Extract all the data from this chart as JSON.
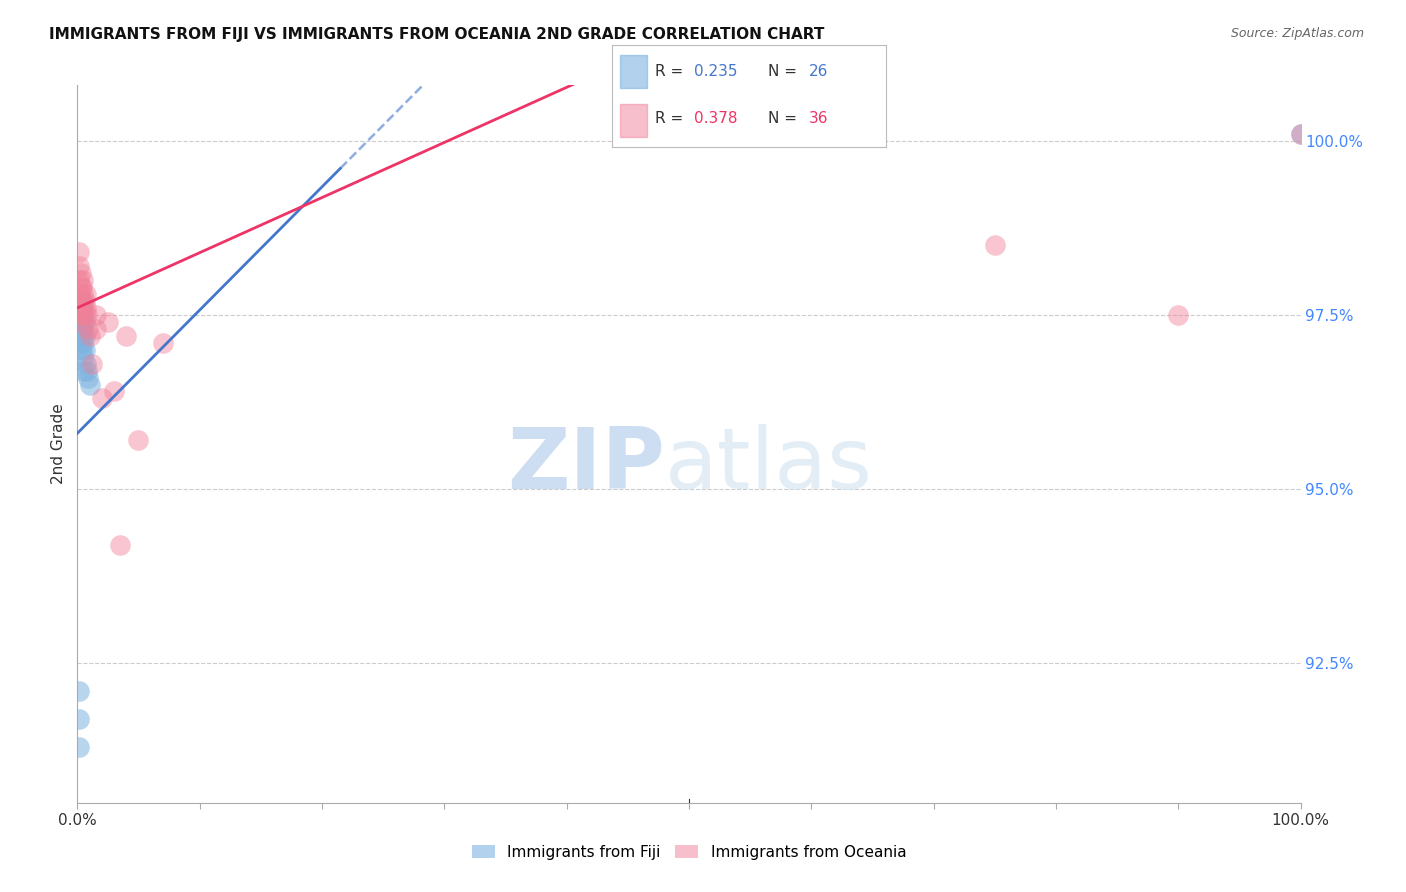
{
  "title": "IMMIGRANTS FROM FIJI VS IMMIGRANTS FROM OCEANIA 2ND GRADE CORRELATION CHART",
  "source": "Source: ZipAtlas.com",
  "ylabel": "2nd Grade",
  "ytick_labels": [
    "100.0%",
    "97.5%",
    "95.0%",
    "92.5%"
  ],
  "ytick_values": [
    1.0,
    0.975,
    0.95,
    0.925
  ],
  "xlim": [
    0.0,
    1.0
  ],
  "ylim": [
    0.905,
    1.008
  ],
  "legend1_r": "0.235",
  "legend1_n": "26",
  "legend2_r": "0.378",
  "legend2_n": "36",
  "color_fiji": "#7EB3E0",
  "color_oceania": "#F08098",
  "color_fiji_line": "#4477CC",
  "color_oceania_line": "#EE3366",
  "fiji_points_x": [
    0.001,
    0.001,
    0.001,
    0.002,
    0.002,
    0.003,
    0.003,
    0.003,
    0.004,
    0.004,
    0.004,
    0.004,
    0.005,
    0.005,
    0.005,
    0.005,
    0.005,
    0.005,
    0.006,
    0.006,
    0.006,
    0.007,
    0.008,
    0.009,
    0.01,
    1.0
  ],
  "fiji_points_y": [
    0.921,
    0.917,
    0.913,
    0.973,
    0.971,
    0.977,
    0.975,
    0.973,
    0.976,
    0.974,
    0.972,
    0.97,
    0.977,
    0.975,
    0.973,
    0.971,
    0.969,
    0.967,
    0.974,
    0.972,
    0.97,
    0.968,
    0.967,
    0.966,
    0.965,
    1.001
  ],
  "oceania_points_x": [
    0.001,
    0.001,
    0.001,
    0.002,
    0.002,
    0.002,
    0.003,
    0.003,
    0.003,
    0.003,
    0.004,
    0.004,
    0.004,
    0.005,
    0.005,
    0.005,
    0.006,
    0.006,
    0.007,
    0.007,
    0.008,
    0.009,
    0.01,
    0.012,
    0.015,
    0.015,
    0.02,
    0.025,
    0.03,
    0.035,
    0.04,
    0.05,
    0.07,
    0.75,
    0.9,
    1.0
  ],
  "oceania_points_y": [
    0.984,
    0.982,
    0.98,
    0.978,
    0.976,
    0.974,
    0.981,
    0.979,
    0.977,
    0.975,
    0.979,
    0.977,
    0.975,
    0.98,
    0.978,
    0.976,
    0.977,
    0.975,
    0.978,
    0.976,
    0.975,
    0.973,
    0.972,
    0.968,
    0.975,
    0.973,
    0.963,
    0.974,
    0.964,
    0.942,
    0.972,
    0.957,
    0.971,
    0.985,
    0.975,
    1.001
  ],
  "fiji_line_x0": 0.0,
  "fiji_line_y0": 0.959,
  "fiji_line_x1": 0.22,
  "fiji_line_y1": 0.995,
  "oceania_line_x0": 0.0,
  "oceania_line_y0": 0.975,
  "oceania_line_x1": 0.22,
  "oceania_line_y1": 0.993
}
